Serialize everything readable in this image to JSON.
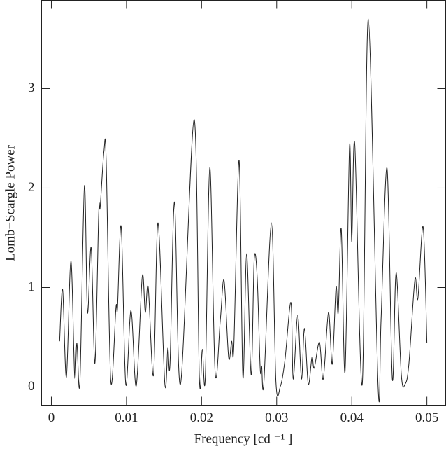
{
  "chart_data": {
    "type": "line",
    "x_label": "Frequency [cd ⁻¹ ]",
    "y_label": "Lomb−Scargle Power",
    "xlim": [
      -0.0013,
      0.0525
    ],
    "ylim": [
      -0.183,
      3.887
    ],
    "xticks": [
      0,
      0.01,
      0.02,
      0.03,
      0.04,
      0.05
    ],
    "yticks": [
      0,
      1,
      2,
      3
    ],
    "series": [
      {
        "color": "#222222",
        "x": [
          0.0011,
          0.0015,
          0.002,
          0.0026,
          0.0031,
          0.0034,
          0.0038,
          0.0044,
          0.0048,
          0.0053,
          0.0058,
          0.0063,
          0.0065,
          0.007,
          0.0073,
          0.0079,
          0.0086,
          0.0088,
          0.0093,
          0.0099,
          0.0106,
          0.0113,
          0.0121,
          0.0125,
          0.0129,
          0.0136,
          0.0142,
          0.0151,
          0.0155,
          0.0158,
          0.0164,
          0.0172,
          0.019,
          0.0197,
          0.0201,
          0.0205,
          0.0211,
          0.0218,
          0.0225,
          0.023,
          0.0236,
          0.024,
          0.0243,
          0.025,
          0.0255,
          0.026,
          0.0266,
          0.027,
          0.0274,
          0.0278,
          0.028,
          0.0283,
          0.0293,
          0.0299,
          0.0305,
          0.0311,
          0.0319,
          0.0322,
          0.0328,
          0.0333,
          0.0337,
          0.0342,
          0.0347,
          0.035,
          0.0357,
          0.0362,
          0.0369,
          0.0374,
          0.0379,
          0.0382,
          0.0386,
          0.0391,
          0.0397,
          0.04,
          0.0404,
          0.0414,
          0.0422,
          0.0435,
          0.0439,
          0.0447,
          0.0454,
          0.0459,
          0.0466,
          0.0471,
          0.0476,
          0.0484,
          0.0488,
          0.0495,
          0.05
        ],
        "values": [
          0.46,
          0.98,
          0.1,
          1.27,
          0.11,
          0.44,
          0.05,
          2.02,
          0.75,
          1.4,
          0.24,
          1.74,
          1.81,
          2.37,
          2.27,
          0.07,
          0.8,
          0.79,
          1.61,
          0.03,
          0.77,
          0.01,
          1.11,
          0.75,
          1.0,
          0.12,
          1.65,
          0.04,
          0.39,
          0.24,
          1.86,
          0.03,
          2.69,
          0.1,
          0.38,
          0.1,
          2.21,
          0.15,
          0.68,
          1.07,
          0.3,
          0.46,
          0.42,
          2.28,
          0.1,
          1.34,
          0.12,
          1.27,
          1.11,
          0.19,
          0.21,
          0.05,
          1.65,
          0.05,
          0.01,
          0.27,
          0.85,
          0.08,
          0.72,
          0.08,
          0.59,
          0.03,
          0.3,
          0.19,
          0.45,
          0.08,
          0.75,
          0.23,
          1.0,
          0.75,
          1.59,
          0.15,
          2.42,
          1.46,
          2.44,
          0.03,
          3.7,
          0.01,
          0.68,
          2.2,
          0.08,
          1.15,
          0.12,
          0.03,
          0.23,
          1.08,
          0.89,
          1.61,
          0.44
        ]
      }
    ]
  }
}
